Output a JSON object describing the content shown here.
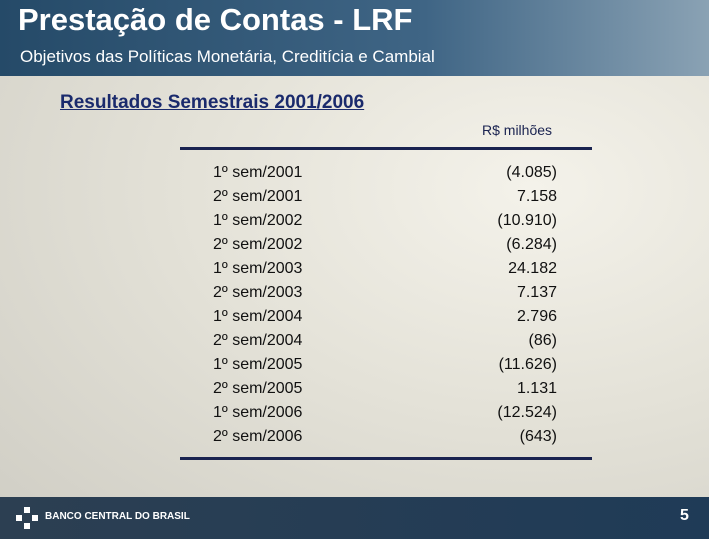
{
  "header": {
    "title": "Prestação de Contas - LRF",
    "subtitle": "Objetivos das Políticas Monetária, Creditícia e Cambial"
  },
  "section": {
    "title": "Resultados Semestrais 2001/2006"
  },
  "table": {
    "unit": "R$ milhões",
    "rows": [
      [
        "1º sem/2001",
        "(4.085)"
      ],
      [
        "2º sem/2001",
        "7.158"
      ],
      [
        "1º sem/2002",
        "(10.910)"
      ],
      [
        "2º sem/2002",
        "(6.284)"
      ],
      [
        "1º sem/2003",
        "24.182"
      ],
      [
        "2º sem/2003",
        "7.137"
      ],
      [
        "1º sem/2004",
        "2.796"
      ],
      [
        "2º sem/2004",
        "(86)"
      ],
      [
        "1º sem/2005",
        "(11.626)"
      ],
      [
        "2º sem/2005",
        "1.131"
      ],
      [
        "1º sem/2006",
        "(12.524)"
      ],
      [
        "2º sem/2006",
        "(643)"
      ]
    ]
  },
  "footer": {
    "logo": "BANCO CENTRAL DO BRASIL",
    "page": "5"
  }
}
